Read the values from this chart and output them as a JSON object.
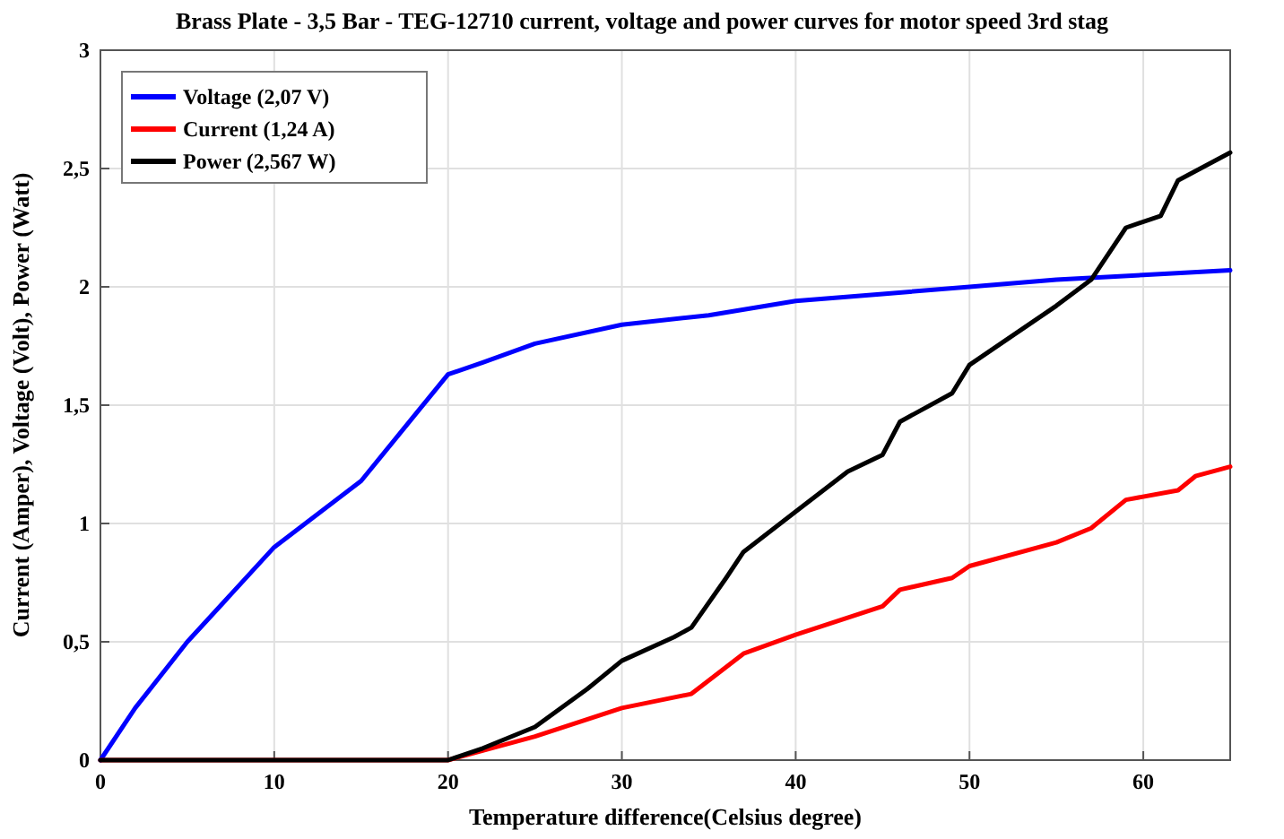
{
  "chart_data": {
    "type": "line",
    "title": "Brass Plate - 3,5 Bar - TEG-12710 current, voltage and power curves for motor speed 3rd stag",
    "xlabel": "Temperature difference(Celsius degree)",
    "ylabel": "Current (Amper), Voltage (Volt), Power (Watt)",
    "xlim": [
      0,
      65
    ],
    "xticks": [
      0,
      10,
      20,
      30,
      40,
      50,
      60
    ],
    "ylim": [
      0,
      3
    ],
    "yticks": [
      0,
      {
        "value": 0.5,
        "label": "0,5"
      },
      1,
      {
        "value": 1.5,
        "label": "1,5"
      },
      2,
      {
        "value": 2.5,
        "label": "2,5"
      },
      3
    ],
    "grid": true,
    "legend": "top left",
    "line_style": "solid",
    "series": [
      {
        "name": "Voltage (2,07 V)",
        "color": "#0000ff",
        "x": [
          0,
          2,
          5,
          10,
          15,
          18,
          20,
          22,
          25,
          30,
          35,
          40,
          45,
          50,
          55,
          60,
          65
        ],
        "values": [
          0,
          0.22,
          0.5,
          0.9,
          1.18,
          1.45,
          1.63,
          1.68,
          1.76,
          1.84,
          1.88,
          1.94,
          1.97,
          2.0,
          2.03,
          2.05,
          2.07
        ]
      },
      {
        "name": "Current (1,24 A)",
        "color": "#ff0000",
        "x": [
          0,
          20,
          22,
          25,
          30,
          34,
          37,
          40,
          45,
          46,
          49,
          50,
          55,
          57,
          59,
          62,
          63,
          65
        ],
        "values": [
          0,
          0,
          0.04,
          0.1,
          0.22,
          0.28,
          0.45,
          0.53,
          0.65,
          0.72,
          0.77,
          0.82,
          0.92,
          0.98,
          1.1,
          1.14,
          1.2,
          1.24
        ]
      },
      {
        "name": "Power (2,567 W)",
        "color": "#000000",
        "x": [
          0,
          20,
          22,
          25,
          28,
          30,
          33,
          34,
          36,
          37,
          40,
          43,
          45,
          46,
          49,
          50,
          55,
          57,
          59,
          61,
          62,
          65
        ],
        "values": [
          0,
          0,
          0.05,
          0.14,
          0.3,
          0.42,
          0.52,
          0.56,
          0.77,
          0.88,
          1.05,
          1.22,
          1.29,
          1.43,
          1.55,
          1.67,
          1.92,
          2.03,
          2.25,
          2.3,
          2.45,
          2.567
        ]
      }
    ]
  }
}
